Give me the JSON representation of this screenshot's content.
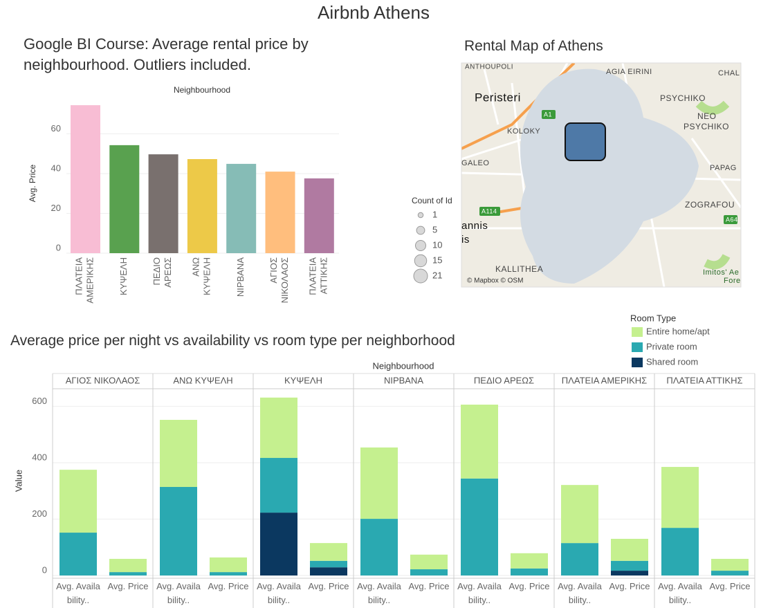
{
  "title": "Airbnb Athens",
  "chart_data": [
    {
      "type": "bar",
      "title": "Google BI Course: Average rental price by neighbourhood. Outliers included.",
      "x_label": "Neighbourhood",
      "y_label": "Avg. Price",
      "categories": [
        "ΠΛΑΤΕΙΑ ΑΜΕΡΙΚΗΣ",
        "ΚΥΨΕΛΗ",
        "ΠΕΔΙΟ ΑΡΕΩΣ",
        "ΑΝΩ ΚΥΨΕΛΗ",
        "ΝΙΡΒΑΝΑ",
        "ΑΓΙΟΣ ΝΙΚΟΛΑΟΣ",
        "ΠΛΑΤΕΙΑ ΑΤΤΙΚΗΣ"
      ],
      "values": [
        74.4,
        54.3,
        49.7,
        47.3,
        44.9,
        41,
        37.6
      ],
      "colors": [
        "#f8bdd4",
        "#59a14f",
        "#79706e",
        "#edc948",
        "#86bcb6",
        "#ffbe7d",
        "#b07aa1"
      ],
      "ylim": [
        0,
        77
      ],
      "yticks": [
        0,
        20,
        40,
        60
      ],
      "grid": true
    },
    {
      "type": "stacked_bar",
      "title": "Average price per night vs availability vs room type per neighborhood",
      "x_label": "Neighbourhood",
      "y_label": "Value",
      "panels": [
        "ΑΓΙΟΣ ΝΙΚΟΛΑΟΣ",
        "ΑΝΩ ΚΥΨΕΛΗ",
        "ΚΥΨΕΛΗ",
        "ΝΙΡΒΑΝΑ",
        "ΠΕΔΙΟ ΑΡΕΩΣ",
        "ΠΛΑΤΕΙΑ ΑΜΕΡΙΚΗΣ",
        "ΠΛΑΤΕΙΑ ΑΤΤΙΚΗΣ"
      ],
      "categories": [
        "Avg. Availability..",
        "Avg. Price"
      ],
      "legend_title": "Room Type",
      "series": [
        {
          "name": "Shared room",
          "color": "#0b3860",
          "values": [
            [
              null,
              null
            ],
            [
              null,
              null
            ],
            [
              223,
              29
            ],
            [
              null,
              null
            ],
            [
              null,
              null
            ],
            [
              null,
              17
            ],
            [
              null,
              null
            ]
          ]
        },
        {
          "name": "Private room",
          "color": "#2aa9b1",
          "values": [
            [
              152,
              12
            ],
            [
              314,
              12
            ],
            [
              194,
              23
            ],
            [
              201,
              22
            ],
            [
              344,
              25
            ],
            [
              115,
              35
            ],
            [
              169,
              17
            ]
          ]
        },
        {
          "name": "Entire home/apt",
          "color": "#c5f08f",
          "values": [
            [
              223,
              47
            ],
            [
              238,
              52
            ],
            [
              214,
              63
            ],
            [
              253,
              52
            ],
            [
              262,
              54
            ],
            [
              206,
              78
            ],
            [
              216,
              42
            ]
          ]
        }
      ],
      "legend_order": [
        2,
        1,
        0
      ],
      "ylim": [
        0,
        655
      ],
      "yticks": [
        0,
        200,
        400,
        600
      ],
      "grid": true
    }
  ],
  "map": {
    "title": "Rental Map of Athens",
    "labels": [
      "ANTHOUPOLI",
      "AGIA EIRINI",
      "CHAL",
      "Peristeri",
      "PSYCHIKO",
      "NEO",
      "PSYCHIKO",
      "KOLOKY",
      "GALEO",
      "PAPAG",
      "ZOGRAFOU",
      "annis",
      "is",
      "KALLITHEA",
      "Imitos' Ae",
      "Fore",
      "A1",
      "A114",
      "A64"
    ],
    "attribution": "© Mapbox © OSM",
    "size_legend": {
      "title": "Count of Id",
      "values": [
        1,
        5,
        10,
        15,
        21
      ]
    }
  }
}
